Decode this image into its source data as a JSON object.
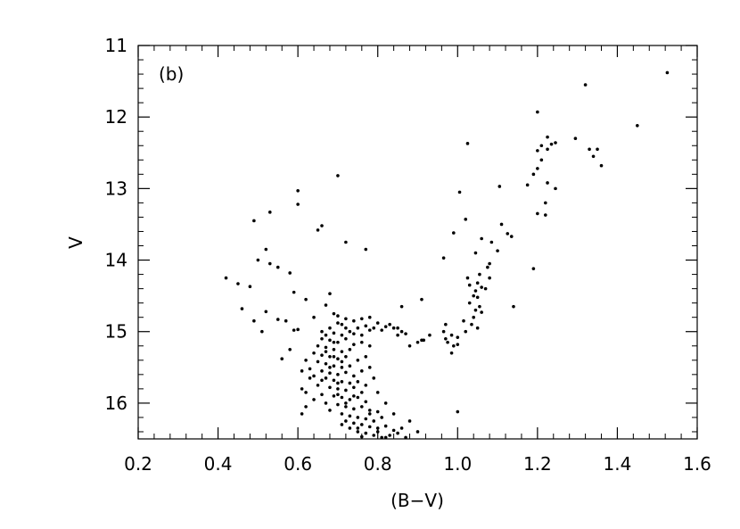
{
  "chart_data": {
    "type": "scatter",
    "panel_label": "(b)",
    "xlabel": "(B−V)",
    "ylabel": "V",
    "xlim": [
      0.2,
      1.6
    ],
    "ylim": [
      16.5,
      11.0
    ],
    "y_inverted": true,
    "x_ticks": [
      0.2,
      0.4,
      0.6,
      0.8,
      1.0,
      1.2,
      1.4,
      1.6
    ],
    "x_tick_labels": [
      "0.2",
      "0.4",
      "0.6",
      "0.8",
      "1.0",
      "1.2",
      "1.4",
      "1.6"
    ],
    "y_ticks": [
      11,
      12,
      13,
      14,
      15,
      16
    ],
    "y_tick_labels": [
      "11",
      "12",
      "13",
      "14",
      "15",
      "16"
    ],
    "grid": false,
    "marker_color": "#000000",
    "points": [
      [
        1.525,
        11.38
      ],
      [
        1.32,
        11.55
      ],
      [
        1.45,
        12.12
      ],
      [
        1.2,
        11.93
      ],
      [
        1.295,
        12.3
      ],
      [
        1.33,
        12.45
      ],
      [
        1.34,
        12.55
      ],
      [
        1.35,
        12.45
      ],
      [
        1.36,
        12.68
      ],
      [
        1.225,
        12.28
      ],
      [
        1.235,
        12.38
      ],
      [
        1.245,
        12.36
      ],
      [
        1.21,
        12.4
      ],
      [
        1.2,
        12.47
      ],
      [
        1.225,
        12.45
      ],
      [
        1.21,
        12.6
      ],
      [
        1.2,
        12.72
      ],
      [
        1.19,
        12.8
      ],
      [
        1.175,
        12.95
      ],
      [
        1.225,
        12.92
      ],
      [
        1.245,
        13.0
      ],
      [
        1.22,
        13.2
      ],
      [
        1.2,
        13.35
      ],
      [
        1.22,
        13.37
      ],
      [
        1.19,
        14.12
      ],
      [
        1.14,
        14.65
      ],
      [
        1.025,
        12.37
      ],
      [
        1.105,
        12.97
      ],
      [
        1.005,
        13.05
      ],
      [
        1.02,
        13.43
      ],
      [
        1.11,
        13.5
      ],
      [
        1.125,
        13.63
      ],
      [
        1.135,
        13.67
      ],
      [
        1.06,
        13.7
      ],
      [
        0.99,
        13.62
      ],
      [
        1.085,
        13.75
      ],
      [
        1.1,
        13.87
      ],
      [
        0.965,
        13.97
      ],
      [
        1.045,
        13.9
      ],
      [
        1.08,
        14.05
      ],
      [
        1.075,
        14.1
      ],
      [
        1.055,
        14.2
      ],
      [
        1.05,
        14.32
      ],
      [
        1.08,
        14.25
      ],
      [
        1.025,
        14.25
      ],
      [
        1.03,
        14.35
      ],
      [
        1.06,
        14.38
      ],
      [
        1.07,
        14.4
      ],
      [
        1.045,
        14.43
      ],
      [
        1.04,
        14.5
      ],
      [
        1.05,
        14.52
      ],
      [
        1.03,
        14.6
      ],
      [
        1.055,
        14.65
      ],
      [
        1.045,
        14.7
      ],
      [
        1.06,
        14.73
      ],
      [
        1.04,
        14.8
      ],
      [
        1.015,
        14.85
      ],
      [
        1.035,
        14.9
      ],
      [
        1.05,
        14.95
      ],
      [
        1.02,
        15.0
      ],
      [
        1.0,
        15.08
      ],
      [
        0.985,
        15.05
      ],
      [
        0.975,
        15.15
      ],
      [
        0.99,
        15.2
      ],
      [
        1.0,
        15.18
      ],
      [
        0.985,
        15.3
      ],
      [
        0.97,
        14.9
      ],
      [
        0.965,
        15.0
      ],
      [
        0.97,
        15.1
      ],
      [
        0.93,
        15.05
      ],
      [
        0.91,
        15.12
      ],
      [
        0.9,
        15.15
      ],
      [
        0.915,
        15.12
      ],
      [
        0.88,
        15.2
      ],
      [
        0.85,
        15.05
      ],
      [
        0.87,
        15.03
      ],
      [
        1.0,
        16.12
      ],
      [
        0.91,
        14.55
      ],
      [
        0.86,
        14.65
      ],
      [
        0.7,
        12.82
      ],
      [
        0.6,
        13.03
      ],
      [
        0.6,
        13.22
      ],
      [
        0.53,
        13.33
      ],
      [
        0.49,
        13.45
      ],
      [
        0.66,
        13.52
      ],
      [
        0.65,
        13.58
      ],
      [
        0.72,
        13.75
      ],
      [
        0.77,
        13.85
      ],
      [
        0.52,
        13.85
      ],
      [
        0.5,
        14.0
      ],
      [
        0.55,
        14.1
      ],
      [
        0.58,
        14.18
      ],
      [
        0.53,
        14.05
      ],
      [
        0.42,
        14.25
      ],
      [
        0.45,
        14.33
      ],
      [
        0.48,
        14.37
      ],
      [
        0.59,
        14.45
      ],
      [
        0.62,
        14.55
      ],
      [
        0.67,
        14.63
      ],
      [
        0.68,
        14.47
      ],
      [
        0.64,
        14.8
      ],
      [
        0.57,
        14.85
      ],
      [
        0.46,
        14.68
      ],
      [
        0.49,
        14.85
      ],
      [
        0.52,
        14.72
      ],
      [
        0.55,
        14.83
      ],
      [
        0.51,
        15.0
      ],
      [
        0.59,
        14.98
      ],
      [
        0.6,
        14.97
      ],
      [
        0.58,
        15.25
      ],
      [
        0.56,
        15.38
      ],
      [
        0.61,
        15.55
      ],
      [
        0.61,
        15.8
      ],
      [
        0.62,
        15.85
      ],
      [
        0.61,
        16.15
      ],
      [
        0.69,
        14.75
      ],
      [
        0.7,
        14.78
      ],
      [
        0.72,
        14.82
      ],
      [
        0.74,
        14.85
      ],
      [
        0.76,
        14.82
      ],
      [
        0.78,
        14.8
      ],
      [
        0.8,
        14.88
      ],
      [
        0.82,
        14.93
      ],
      [
        0.84,
        14.95
      ],
      [
        0.83,
        14.9
      ],
      [
        0.79,
        14.95
      ],
      [
        0.81,
        14.98
      ],
      [
        0.77,
        14.92
      ],
      [
        0.75,
        14.95
      ],
      [
        0.73,
        15.0
      ],
      [
        0.71,
        14.9
      ],
      [
        0.68,
        14.95
      ],
      [
        0.66,
        15.0
      ],
      [
        0.67,
        15.05
      ],
      [
        0.69,
        15.02
      ],
      [
        0.71,
        15.05
      ],
      [
        0.74,
        15.03
      ],
      [
        0.76,
        15.05
      ],
      [
        0.85,
        14.95
      ],
      [
        0.86,
        15.0
      ],
      [
        0.66,
        15.1
      ],
      [
        0.68,
        15.12
      ],
      [
        0.7,
        15.15
      ],
      [
        0.72,
        15.1
      ],
      [
        0.74,
        15.18
      ],
      [
        0.65,
        15.2
      ],
      [
        0.67,
        15.22
      ],
      [
        0.69,
        15.25
      ],
      [
        0.71,
        15.28
      ],
      [
        0.73,
        15.25
      ],
      [
        0.64,
        15.3
      ],
      [
        0.66,
        15.33
      ],
      [
        0.68,
        15.35
      ],
      [
        0.7,
        15.38
      ],
      [
        0.72,
        15.35
      ],
      [
        0.75,
        15.4
      ],
      [
        0.65,
        15.42
      ],
      [
        0.67,
        15.45
      ],
      [
        0.69,
        15.48
      ],
      [
        0.71,
        15.5
      ],
      [
        0.63,
        15.52
      ],
      [
        0.66,
        15.55
      ],
      [
        0.68,
        15.58
      ],
      [
        0.7,
        15.6
      ],
      [
        0.72,
        15.57
      ],
      [
        0.74,
        15.62
      ],
      [
        0.76,
        15.55
      ],
      [
        0.64,
        15.62
      ],
      [
        0.67,
        15.65
      ],
      [
        0.69,
        15.68
      ],
      [
        0.71,
        15.7
      ],
      [
        0.73,
        15.72
      ],
      [
        0.65,
        15.75
      ],
      [
        0.68,
        15.78
      ],
      [
        0.7,
        15.8
      ],
      [
        0.72,
        15.82
      ],
      [
        0.74,
        15.78
      ],
      [
        0.76,
        15.85
      ],
      [
        0.66,
        15.88
      ],
      [
        0.69,
        15.9
      ],
      [
        0.71,
        15.92
      ],
      [
        0.73,
        15.95
      ],
      [
        0.75,
        15.92
      ],
      [
        0.77,
        15.98
      ],
      [
        0.67,
        16.0
      ],
      [
        0.7,
        16.02
      ],
      [
        0.72,
        16.05
      ],
      [
        0.74,
        16.08
      ],
      [
        0.76,
        16.05
      ],
      [
        0.78,
        16.1
      ],
      [
        0.8,
        16.12
      ],
      [
        0.68,
        16.1
      ],
      [
        0.71,
        16.15
      ],
      [
        0.73,
        16.18
      ],
      [
        0.75,
        16.2
      ],
      [
        0.77,
        16.22
      ],
      [
        0.79,
        16.25
      ],
      [
        0.81,
        16.2
      ],
      [
        0.72,
        16.25
      ],
      [
        0.74,
        16.28
      ],
      [
        0.76,
        16.3
      ],
      [
        0.78,
        16.33
      ],
      [
        0.8,
        16.35
      ],
      [
        0.82,
        16.32
      ],
      [
        0.84,
        16.38
      ],
      [
        0.73,
        16.35
      ],
      [
        0.75,
        16.4
      ],
      [
        0.77,
        16.42
      ],
      [
        0.79,
        16.45
      ],
      [
        0.81,
        16.48
      ],
      [
        0.83,
        16.45
      ],
      [
        0.85,
        16.42
      ],
      [
        0.86,
        16.35
      ],
      [
        0.84,
        16.15
      ],
      [
        0.82,
        16.0
      ],
      [
        0.8,
        15.85
      ],
      [
        0.79,
        15.65
      ],
      [
        0.78,
        15.5
      ],
      [
        0.77,
        15.35
      ],
      [
        0.78,
        15.2
      ],
      [
        0.76,
        15.15
      ],
      [
        0.62,
        15.4
      ],
      [
        0.63,
        15.65
      ],
      [
        0.64,
        15.95
      ],
      [
        0.62,
        16.05
      ],
      [
        0.88,
        16.25
      ],
      [
        0.9,
        16.4
      ],
      [
        0.87,
        16.48
      ],
      [
        0.82,
        16.48
      ],
      [
        0.76,
        16.47
      ],
      [
        0.7,
        14.88
      ],
      [
        0.72,
        14.95
      ],
      [
        0.78,
        14.98
      ],
      [
        0.69,
        15.35
      ],
      [
        0.71,
        15.42
      ],
      [
        0.73,
        15.48
      ],
      [
        0.75,
        15.7
      ],
      [
        0.77,
        15.75
      ],
      [
        0.7,
        15.88
      ],
      [
        0.72,
        16.0
      ],
      [
        0.68,
        15.5
      ],
      [
        0.7,
        15.72
      ],
      [
        0.66,
        15.68
      ],
      [
        0.74,
        15.9
      ],
      [
        0.78,
        16.15
      ],
      [
        0.75,
        16.35
      ],
      [
        0.71,
        16.3
      ],
      [
        0.8,
        16.4
      ],
      [
        0.67,
        15.28
      ],
      [
        0.69,
        15.15
      ]
    ]
  }
}
